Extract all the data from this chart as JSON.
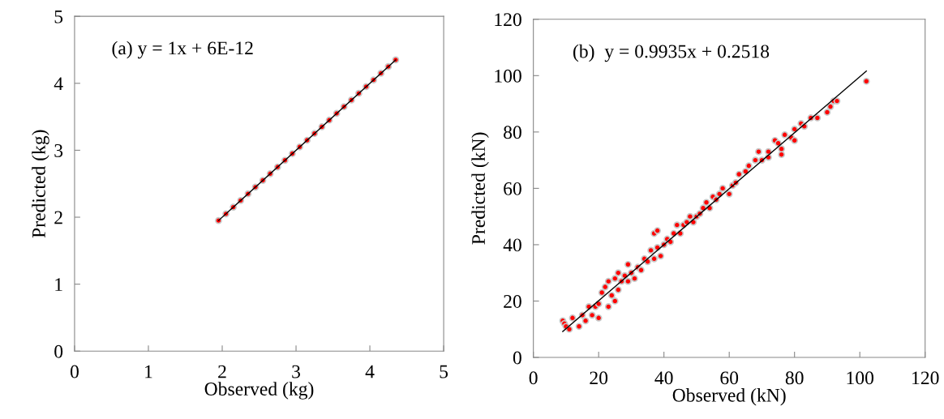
{
  "chart_data": [
    {
      "type": "scatter",
      "xlabel": "Observed (kg)",
      "ylabel": "Predicted (kg)",
      "annotations": [
        "(a) y = 1x + 6E-12"
      ],
      "xlim": [
        0,
        5
      ],
      "ylim": [
        0,
        5
      ],
      "xticks": [
        0,
        1,
        2,
        3,
        4,
        5
      ],
      "yticks": [
        0,
        1,
        2,
        3,
        4,
        5
      ],
      "grid": false,
      "legend": false,
      "series": [
        {
          "marker": "circle",
          "color": "#ff0000",
          "x": [
            1.95,
            2.05,
            2.15,
            2.25,
            2.35,
            2.45,
            2.55,
            2.65,
            2.75,
            2.85,
            2.95,
            3.05,
            3.15,
            3.25,
            3.35,
            3.45,
            3.55,
            3.65,
            3.75,
            3.85,
            3.95,
            4.05,
            4.15,
            4.25,
            4.35
          ],
          "values": [
            1.95,
            2.05,
            2.15,
            2.25,
            2.35,
            2.45,
            2.55,
            2.65,
            2.75,
            2.85,
            2.95,
            3.05,
            3.15,
            3.25,
            3.35,
            3.45,
            3.55,
            3.65,
            3.75,
            3.85,
            3.95,
            4.05,
            4.15,
            4.25,
            4.35
          ]
        },
        {
          "type": "line",
          "color": "#000000",
          "x": [
            1.95,
            4.35
          ],
          "values": [
            1.95,
            4.35
          ]
        }
      ]
    },
    {
      "type": "scatter",
      "xlabel": "Observed (kN)",
      "ylabel": "Predicted (kN)",
      "annotations": [
        "(b)  y = 0.9935x + 0.2518"
      ],
      "xlim": [
        0,
        120
      ],
      "ylim": [
        0,
        120
      ],
      "xticks": [
        0,
        20,
        40,
        60,
        80,
        100,
        120
      ],
      "yticks": [
        0,
        20,
        40,
        60,
        80,
        100,
        120
      ],
      "grid": false,
      "legend": false,
      "series": [
        {
          "marker": "circle",
          "color": "#ff0000",
          "x": [
            9,
            9.5,
            10,
            11,
            12,
            14,
            15,
            16,
            17,
            18,
            19,
            20,
            20,
            21,
            22,
            23,
            23,
            24,
            25,
            25,
            26,
            26,
            27,
            28,
            29,
            29,
            30,
            31,
            32,
            33,
            34,
            35,
            36,
            37,
            37,
            38,
            38,
            39,
            40,
            41,
            42,
            43,
            44,
            45,
            46,
            47,
            48,
            49,
            50,
            51,
            52,
            53,
            54,
            55,
            56,
            57,
            58,
            60,
            61,
            62,
            63,
            65,
            66,
            68,
            69,
            70,
            72,
            72,
            74,
            75,
            76,
            76,
            77,
            79,
            80,
            80,
            82,
            83,
            85,
            87,
            90,
            91,
            92,
            93,
            102
          ],
          "values": [
            13,
            12,
            11,
            10,
            14,
            11,
            15,
            13,
            18,
            15,
            18,
            14,
            19,
            23,
            25,
            18,
            27,
            22,
            20,
            28,
            24,
            30,
            27,
            29,
            27,
            33,
            30,
            28,
            32,
            31,
            35,
            34,
            38,
            44,
            35,
            45,
            39,
            36,
            40,
            42,
            41,
            44,
            47,
            44,
            47,
            48,
            50,
            48,
            50,
            51,
            53,
            55,
            53,
            57,
            56,
            58,
            60,
            58,
            61,
            62,
            65,
            66,
            68,
            70,
            73,
            70,
            73,
            71,
            77,
            76,
            72,
            74,
            79,
            78,
            81,
            77,
            83,
            82,
            85,
            85,
            87,
            89,
            91,
            91,
            98
          ]
        },
        {
          "type": "line",
          "color": "#000000",
          "x": [
            9,
            102
          ],
          "values": [
            9.2,
            101.6
          ]
        }
      ]
    }
  ]
}
